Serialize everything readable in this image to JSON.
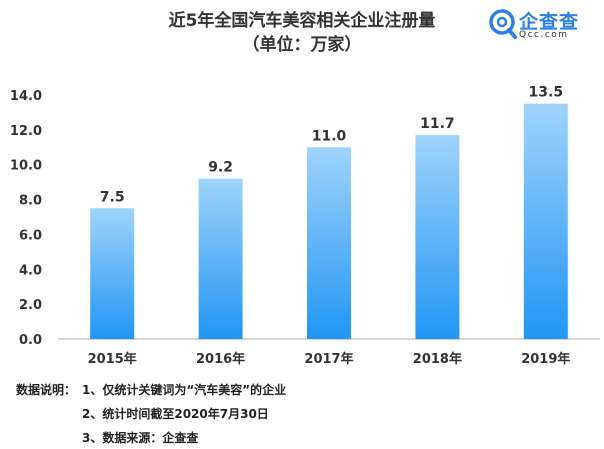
{
  "header": {
    "title_line1": "近5年全国汽车美容相关企业注册量",
    "title_line2": "（单位：万家）"
  },
  "logo": {
    "icon": "qichacha-logo-icon",
    "name": "企查查",
    "domain": "Qcc.com",
    "color": "#2b80e0"
  },
  "chart_data": {
    "type": "bar",
    "title": "近5年全国汽车美容相关企业注册量",
    "subtitle": "（单位：万家）",
    "categories": [
      "2015年",
      "2016年",
      "2017年",
      "2018年",
      "2019年"
    ],
    "values": [
      7.5,
      9.2,
      11.0,
      11.7,
      13.5
    ],
    "value_labels": [
      "7.5",
      "9.2",
      "11.0",
      "11.7",
      "13.5"
    ],
    "yticks": [
      "0.0",
      "2.0",
      "4.0",
      "6.0",
      "8.0",
      "10.0",
      "12.0",
      "14.0"
    ],
    "ylim": [
      0,
      14
    ],
    "grid": false,
    "legend": "none",
    "bar_color_top": "#9fd3fb",
    "bar_color_bottom": "#2196f3"
  },
  "notes": {
    "label": "数据说明：",
    "items": [
      "1、仅统计关键词为“汽车美容”的企业",
      "2、统计时间截至2020年7月30日",
      "3、数据来源：企查查"
    ]
  }
}
